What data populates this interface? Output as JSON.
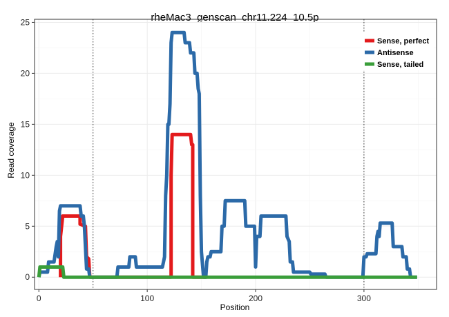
{
  "chart_data": {
    "type": "line",
    "title": "rheMac3_genscan_chr11.224_10.5p",
    "xlabel": "Position",
    "ylabel": "Read coverage",
    "xlim": [
      -4,
      367
    ],
    "ylim": [
      -1.2,
      25.3
    ],
    "xticks": [
      0,
      100,
      200,
      300
    ],
    "yticks": [
      0,
      5,
      10,
      15,
      20,
      25
    ],
    "grid": true,
    "legend_position": "top-right",
    "vlines": [
      50,
      300
    ],
    "series": [
      {
        "name": "Sense, perfect",
        "color": "#e31a1c",
        "points": [
          [
            20,
            0
          ],
          [
            20,
            4
          ],
          [
            22,
            6
          ],
          [
            38,
            6
          ],
          [
            38,
            5.2
          ],
          [
            43,
            5
          ],
          [
            44,
            2
          ],
          [
            46,
            1.8
          ],
          [
            47,
            0
          ],
          [
            55,
            0
          ],
          [
            122,
            0
          ],
          [
            122,
            10
          ],
          [
            123,
            14
          ],
          [
            140,
            14
          ],
          [
            141,
            13
          ],
          [
            142,
            13
          ],
          [
            142,
            0
          ],
          [
            155,
            0
          ]
        ]
      },
      {
        "name": "Antisense",
        "color": "#2c6aa8",
        "points": [
          [
            0,
            0
          ],
          [
            1,
            0.5
          ],
          [
            8,
            0.5
          ],
          [
            9,
            1.5
          ],
          [
            14,
            1.5
          ],
          [
            16,
            3
          ],
          [
            17,
            3.5
          ],
          [
            18,
            2
          ],
          [
            19,
            6.5
          ],
          [
            20,
            7
          ],
          [
            38,
            7
          ],
          [
            39,
            6
          ],
          [
            41,
            6
          ],
          [
            42,
            5
          ],
          [
            44,
            0.8
          ],
          [
            46,
            0.8
          ],
          [
            47,
            0
          ],
          [
            72,
            0
          ],
          [
            73,
            1
          ],
          [
            83,
            1
          ],
          [
            84,
            2
          ],
          [
            89,
            2
          ],
          [
            90,
            1
          ],
          [
            114,
            1
          ],
          [
            115,
            1.5
          ],
          [
            116,
            2
          ],
          [
            117,
            8
          ],
          [
            118,
            10
          ],
          [
            119,
            15
          ],
          [
            120,
            15
          ],
          [
            121,
            17
          ],
          [
            122,
            23
          ],
          [
            123,
            24
          ],
          [
            134,
            24
          ],
          [
            135,
            23
          ],
          [
            139,
            23
          ],
          [
            140,
            22
          ],
          [
            143,
            22
          ],
          [
            144,
            20
          ],
          [
            146,
            20
          ],
          [
            147,
            18.5
          ],
          [
            148,
            18
          ],
          [
            149,
            8
          ],
          [
            150,
            2.5
          ],
          [
            152,
            0
          ],
          [
            154,
            0
          ],
          [
            155,
            1.5
          ],
          [
            156,
            2
          ],
          [
            158,
            2
          ],
          [
            159,
            2.5
          ],
          [
            168,
            2.5
          ],
          [
            169,
            5
          ],
          [
            171,
            5
          ],
          [
            172,
            7.5
          ],
          [
            190,
            7.5
          ],
          [
            191,
            5
          ],
          [
            199,
            5
          ],
          [
            200,
            1
          ],
          [
            201,
            4
          ],
          [
            204,
            4
          ],
          [
            205,
            6
          ],
          [
            228,
            6
          ],
          [
            229,
            4
          ],
          [
            231,
            3.5
          ],
          [
            232,
            1.5
          ],
          [
            234,
            1.5
          ],
          [
            235,
            0.5
          ],
          [
            250,
            0.5
          ],
          [
            251,
            0.3
          ],
          [
            264,
            0.3
          ],
          [
            265,
            0
          ],
          [
            299,
            0
          ],
          [
            300,
            2
          ],
          [
            302,
            2
          ],
          [
            303,
            2.3
          ],
          [
            311,
            2.3
          ],
          [
            312,
            4
          ],
          [
            313,
            4.5
          ],
          [
            314,
            4
          ],
          [
            315,
            5.3
          ],
          [
            326,
            5.3
          ],
          [
            327,
            3
          ],
          [
            335,
            3
          ],
          [
            336,
            2
          ],
          [
            339,
            2
          ],
          [
            340,
            0.8
          ],
          [
            342,
            0.8
          ],
          [
            343,
            0
          ],
          [
            349,
            0
          ]
        ]
      },
      {
        "name": "Sense, tailed",
        "color": "#3a9e3a",
        "points": [
          [
            0,
            0
          ],
          [
            1,
            1
          ],
          [
            22,
            1
          ],
          [
            23,
            0
          ],
          [
            349,
            0
          ]
        ]
      }
    ]
  }
}
